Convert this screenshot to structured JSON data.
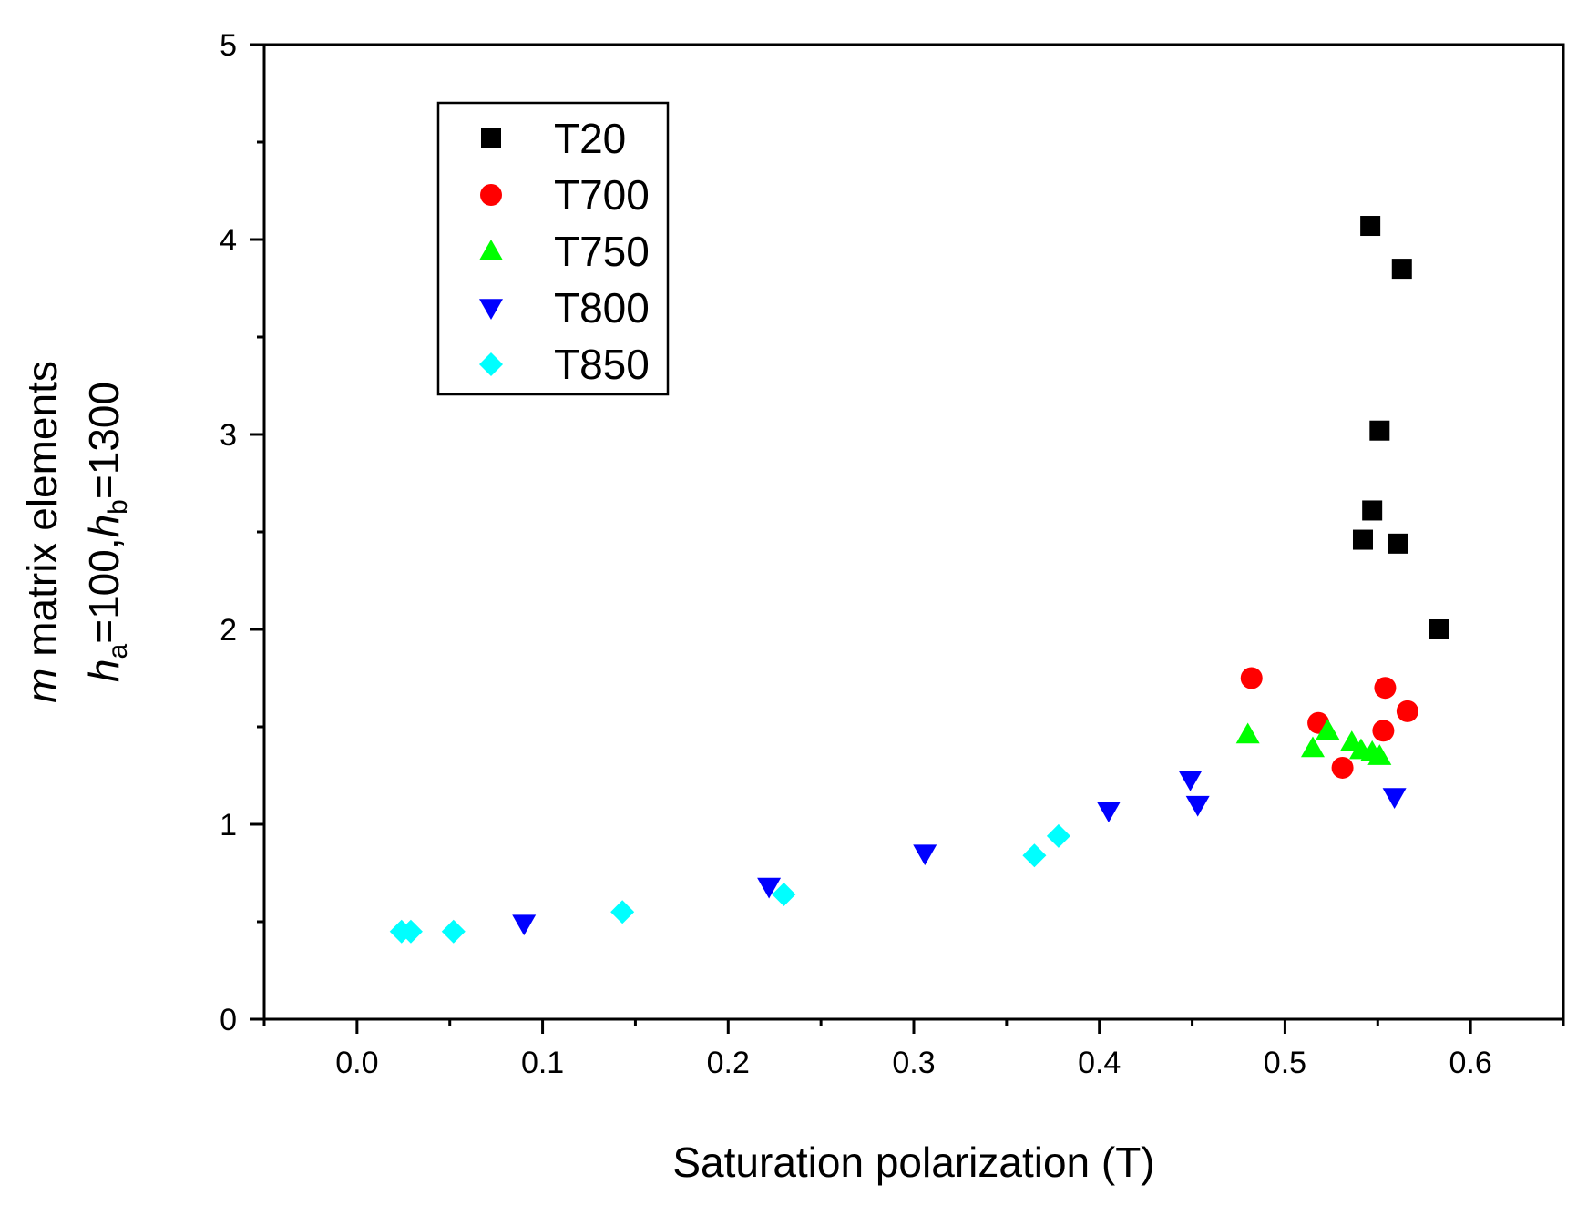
{
  "chart_data": {
    "type": "scatter",
    "title": "",
    "xlabel": "Saturation polarization  (T)",
    "ylabel": {
      "line1_italic": "m",
      "line1_rest": " matrix elements",
      "line2": {
        "h1": "h",
        "sub1": "a",
        "eq1": "=100,",
        "h2": "h",
        "sub2": "b",
        "eq2": "=1300"
      }
    },
    "xlim": [
      -0.05,
      0.65
    ],
    "ylim": [
      0,
      5
    ],
    "x_ticks": [
      0.0,
      0.1,
      0.2,
      0.3,
      0.4,
      0.5,
      0.6
    ],
    "x_tick_labels": [
      "0.0",
      "0.1",
      "0.2",
      "0.3",
      "0.4",
      "0.5",
      "0.6"
    ],
    "y_ticks": [
      0,
      1,
      2,
      3,
      4,
      5
    ],
    "y_tick_labels": [
      "0",
      "1",
      "2",
      "3",
      "4",
      "5"
    ],
    "legend_position": "top-left",
    "series": [
      {
        "name": "T20",
        "marker": "square",
        "color": "#000000",
        "points": [
          [
            0.546,
            4.07
          ],
          [
            0.563,
            3.85
          ],
          [
            0.551,
            3.02
          ],
          [
            0.547,
            2.61
          ],
          [
            0.542,
            2.46
          ],
          [
            0.561,
            2.44
          ],
          [
            0.583,
            2.0
          ]
        ]
      },
      {
        "name": "T700",
        "marker": "circle",
        "color": "#ff0000",
        "points": [
          [
            0.482,
            1.75
          ],
          [
            0.554,
            1.7
          ],
          [
            0.566,
            1.58
          ],
          [
            0.518,
            1.52
          ],
          [
            0.553,
            1.48
          ],
          [
            0.531,
            1.29
          ]
        ]
      },
      {
        "name": "T750",
        "marker": "triangle-up",
        "color": "#00ff00",
        "points": [
          [
            0.48,
            1.46
          ],
          [
            0.523,
            1.48
          ],
          [
            0.515,
            1.39
          ],
          [
            0.536,
            1.42
          ],
          [
            0.541,
            1.38
          ],
          [
            0.547,
            1.37
          ],
          [
            0.551,
            1.35
          ]
        ]
      },
      {
        "name": "T800",
        "marker": "triangle-down",
        "color": "#0000ff",
        "points": [
          [
            0.449,
            1.23
          ],
          [
            0.405,
            1.07
          ],
          [
            0.453,
            1.1
          ],
          [
            0.559,
            1.14
          ],
          [
            0.306,
            0.85
          ],
          [
            0.222,
            0.68
          ],
          [
            0.09,
            0.49
          ]
        ]
      },
      {
        "name": "T850",
        "marker": "diamond",
        "color": "#00ffff",
        "points": [
          [
            0.024,
            0.45
          ],
          [
            0.029,
            0.45
          ],
          [
            0.052,
            0.45
          ],
          [
            0.143,
            0.55
          ],
          [
            0.23,
            0.64
          ],
          [
            0.365,
            0.84
          ],
          [
            0.378,
            0.94
          ]
        ]
      }
    ]
  }
}
